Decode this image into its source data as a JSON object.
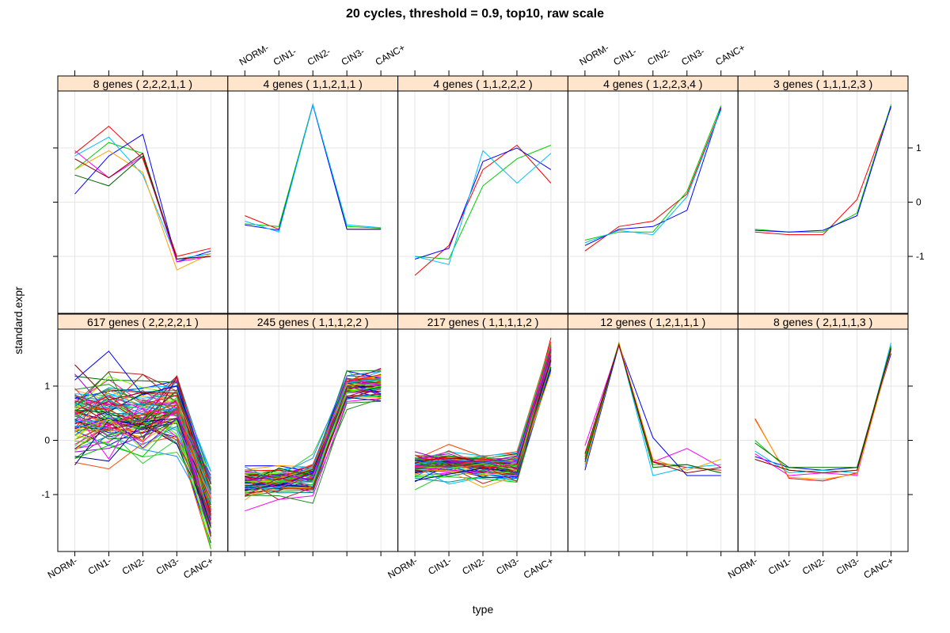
{
  "chart_data": {
    "type": "line",
    "title": "20 cycles, threshold = 0.9, top10, raw scale",
    "xlabel": "type",
    "ylabel": "standard.expr",
    "categories": [
      "NORM-",
      "CIN1-",
      "CIN2-",
      "CIN3-",
      "CANC+"
    ],
    "yticks": [
      -1,
      0,
      1
    ],
    "ylim": [
      -2.05,
      2.05
    ],
    "strip_color": "#ffe5cc",
    "grid_color": "#e6e6e6",
    "panels": [
      {
        "label": "617 genes ( 2,2,2,2,1 )",
        "pattern": [
          0.4,
          0.5,
          0.45,
          0.55,
          -1.25
        ],
        "spread": 0.55,
        "n_lines": 90,
        "series": []
      },
      {
        "label": "245 genes ( 1,1,1,2,2 )",
        "pattern": [
          -0.8,
          -0.75,
          -0.7,
          1.0,
          1.0
        ],
        "spread": 0.22,
        "n_lines": 70,
        "series": []
      },
      {
        "label": "217 genes ( 1,1,1,1,2 )",
        "pattern": [
          -0.45,
          -0.45,
          -0.5,
          -0.5,
          1.6
        ],
        "spread": 0.22,
        "n_lines": 70,
        "series": []
      },
      {
        "label": "12 genes ( 1,2,1,1,1 )",
        "pattern": [],
        "spread": 0,
        "n_lines": 0,
        "series": [
          {
            "values": [
              -0.35,
              1.77,
              -0.4,
              -0.5,
              -0.55
            ]
          },
          {
            "values": [
              -0.3,
              1.8,
              -0.45,
              -0.45,
              -0.6
            ]
          },
          {
            "values": [
              -0.55,
              1.76,
              0.05,
              -0.65,
              -0.65
            ]
          },
          {
            "values": [
              -0.45,
              1.78,
              -0.65,
              -0.5,
              -0.45
            ]
          },
          {
            "values": [
              -0.1,
              1.75,
              -0.4,
              -0.15,
              -0.5
            ]
          },
          {
            "values": [
              -0.5,
              1.8,
              -0.35,
              -0.55,
              -0.35
            ]
          },
          {
            "values": [
              -0.4,
              1.77,
              -0.5,
              -0.45,
              -0.6
            ]
          },
          {
            "values": [
              -0.25,
              1.76,
              -0.4,
              -0.6,
              -0.5
            ]
          }
        ]
      },
      {
        "label": "8 genes ( 2,1,1,1,3 )",
        "pattern": [],
        "spread": 0,
        "n_lines": 0,
        "series": [
          {
            "values": [
              0.4,
              -0.7,
              -0.75,
              -0.6,
              1.7
            ]
          },
          {
            "values": [
              0.0,
              -0.55,
              -0.6,
              -0.55,
              1.75
            ]
          },
          {
            "values": [
              -0.3,
              -0.5,
              -0.55,
              -0.5,
              1.6
            ]
          },
          {
            "values": [
              -0.2,
              -0.6,
              -0.55,
              -0.6,
              1.8
            ]
          },
          {
            "values": [
              -0.25,
              -0.65,
              -0.6,
              -0.65,
              1.7
            ]
          },
          {
            "values": [
              0.38,
              -0.68,
              -0.72,
              -0.62,
              1.65
            ]
          },
          {
            "values": [
              -0.05,
              -0.5,
              -0.5,
              -0.5,
              1.72
            ]
          },
          {
            "values": [
              -0.35,
              -0.55,
              -0.6,
              -0.55,
              1.68
            ]
          }
        ]
      },
      {
        "label": "8 genes ( 2,2,2,1,1 )",
        "pattern": [],
        "spread": 0,
        "n_lines": 0,
        "series": [
          {
            "values": [
              0.9,
              1.4,
              0.8,
              -1.0,
              -0.85
            ]
          },
          {
            "values": [
              0.6,
              1.1,
              0.9,
              -1.05,
              -0.95
            ]
          },
          {
            "values": [
              0.15,
              0.85,
              1.25,
              -1.1,
              -0.9
            ]
          },
          {
            "values": [
              0.85,
              1.2,
              0.5,
              -1.05,
              -0.95
            ]
          },
          {
            "values": [
              0.95,
              0.45,
              0.85,
              -1.1,
              -1.0
            ]
          },
          {
            "values": [
              0.6,
              0.95,
              0.55,
              -1.25,
              -0.95
            ]
          },
          {
            "values": [
              0.5,
              0.3,
              0.85,
              -1.05,
              -1.0
            ]
          },
          {
            "values": [
              0.8,
              0.45,
              0.9,
              -1.05,
              -1.0
            ]
          }
        ]
      },
      {
        "label": "4 genes ( 1,1,2,1,1 )",
        "pattern": [],
        "spread": 0,
        "n_lines": 0,
        "series": [
          {
            "values": [
              -0.25,
              -0.5,
              1.8,
              -0.5,
              -0.5
            ]
          },
          {
            "values": [
              -0.4,
              -0.45,
              1.8,
              -0.45,
              -0.48
            ]
          },
          {
            "values": [
              -0.42,
              -0.52,
              1.79,
              -0.5,
              -0.5
            ]
          },
          {
            "values": [
              -0.35,
              -0.55,
              1.8,
              -0.42,
              -0.47
            ]
          }
        ]
      },
      {
        "label": "4 genes ( 1,1,2,2,2 )",
        "pattern": [],
        "spread": 0,
        "n_lines": 0,
        "series": [
          {
            "values": [
              -1.35,
              -0.8,
              0.6,
              1.05,
              0.35
            ]
          },
          {
            "values": [
              -1.0,
              -1.05,
              0.3,
              0.8,
              1.05
            ]
          },
          {
            "values": [
              -1.05,
              -0.85,
              0.75,
              1.0,
              0.6
            ]
          },
          {
            "values": [
              -1.0,
              -1.15,
              0.95,
              0.35,
              0.9
            ]
          }
        ]
      },
      {
        "label": "4 genes ( 1,2,2,3,4 )",
        "pattern": [],
        "spread": 0,
        "n_lines": 0,
        "series": [
          {
            "values": [
              -0.9,
              -0.45,
              -0.35,
              0.15,
              1.72
            ]
          },
          {
            "values": [
              -0.7,
              -0.55,
              -0.55,
              0.2,
              1.78
            ]
          },
          {
            "values": [
              -0.8,
              -0.5,
              -0.45,
              -0.15,
              1.75
            ]
          },
          {
            "values": [
              -0.75,
              -0.52,
              -0.6,
              0.1,
              1.7
            ]
          }
        ]
      },
      {
        "label": "3 genes ( 1,1,1,2,3 )",
        "pattern": [],
        "spread": 0,
        "n_lines": 0,
        "series": [
          {
            "values": [
              -0.55,
              -0.6,
              -0.6,
              0.05,
              1.75
            ]
          },
          {
            "values": [
              -0.5,
              -0.55,
              -0.55,
              -0.2,
              1.8
            ]
          },
          {
            "values": [
              -0.52,
              -0.55,
              -0.52,
              -0.25,
              1.77
            ]
          }
        ]
      }
    ],
    "palette": [
      "#ff0000",
      "#00cd00",
      "#0000ff",
      "#00bfff",
      "#ff00ff",
      "#ffa500",
      "#006400",
      "#8b0000",
      "#7cfc00",
      "#00008b",
      "#ff1493",
      "#228b22",
      "#1e90ff",
      "#b22222",
      "#32cd32",
      "#9400d3",
      "#008b8b",
      "#ff4500"
    ]
  }
}
